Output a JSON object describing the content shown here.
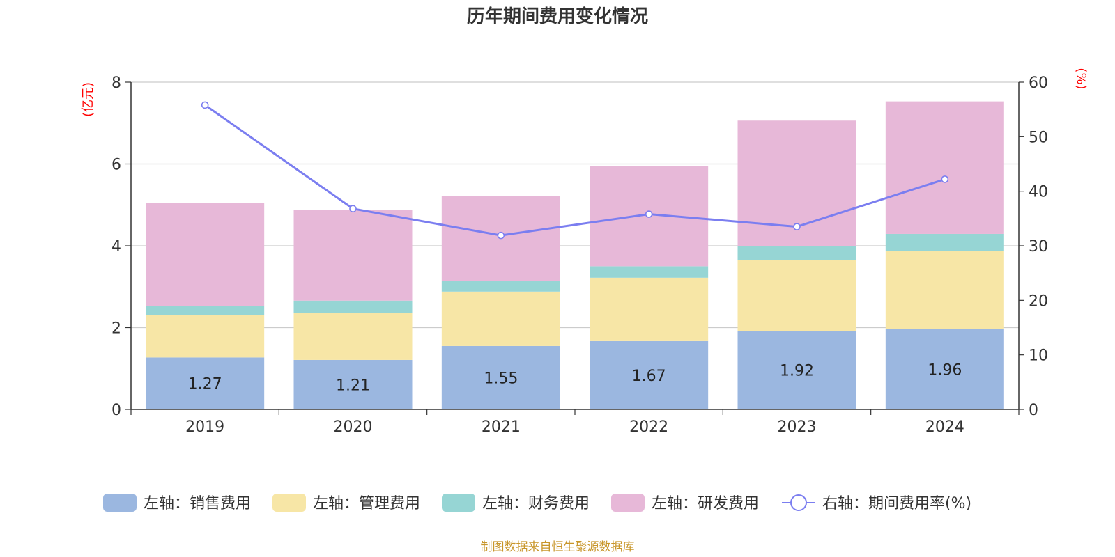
{
  "chart_data": {
    "type": "bar",
    "stacked": true,
    "title": "历年期间费用变化情况",
    "categories": [
      "2019",
      "2020",
      "2021",
      "2022",
      "2023",
      "2024"
    ],
    "y_left": {
      "unit": "(亿元)",
      "ylim": [
        0,
        8
      ],
      "ticks": [
        0,
        2,
        4,
        6,
        8
      ]
    },
    "y_right": {
      "unit": "(%)",
      "ylim": [
        0,
        60
      ],
      "ticks": [
        0,
        10,
        20,
        30,
        40,
        50,
        60
      ]
    },
    "series": [
      {
        "name": "左轴：销售费用",
        "axis": "left",
        "type": "bar",
        "color": "#9bb7e0",
        "values": [
          1.27,
          1.21,
          1.55,
          1.67,
          1.92,
          1.96
        ],
        "show_labels": true
      },
      {
        "name": "左轴：管理费用",
        "axis": "left",
        "type": "bar",
        "color": "#f7e6a6",
        "values": [
          1.03,
          1.15,
          1.33,
          1.55,
          1.73,
          1.92
        ]
      },
      {
        "name": "左轴：财务费用",
        "axis": "left",
        "type": "bar",
        "color": "#96d5d4",
        "values": [
          0.23,
          0.3,
          0.26,
          0.28,
          0.34,
          0.41
        ]
      },
      {
        "name": "左轴：研发费用",
        "axis": "left",
        "type": "bar",
        "color": "#e7b8d8",
        "values": [
          2.52,
          2.21,
          2.08,
          2.45,
          3.07,
          3.24
        ]
      },
      {
        "name": "右轴：期间费用率(%)",
        "axis": "right",
        "type": "line",
        "color": "#7b7ef0",
        "values": [
          55.8,
          36.8,
          31.9,
          35.8,
          33.5,
          42.2
        ]
      }
    ],
    "grid": true,
    "legend_position": "bottom"
  },
  "source": "制图数据来自恒生聚源数据库"
}
